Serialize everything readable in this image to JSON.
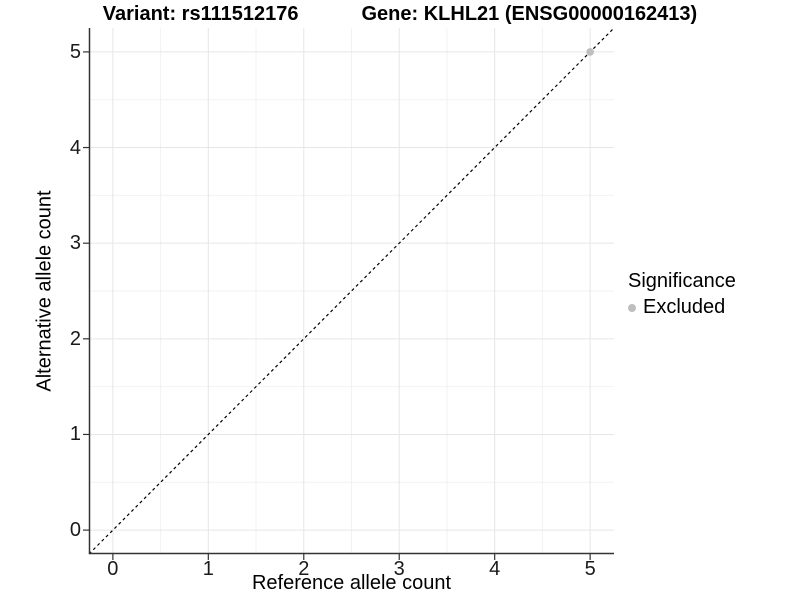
{
  "header": {
    "title_left": "Variant: rs111512176",
    "title_right": "Gene: KLHL21 (ENSG00000162413)"
  },
  "chart_data": {
    "type": "scatter",
    "title": "Variant: rs111512176   Gene: KLHL21 (ENSG00000162413)",
    "xlabel": "Reference allele count",
    "ylabel": "Alternative allele count",
    "xlim": [
      -0.25,
      5.25
    ],
    "ylim": [
      -0.25,
      5.25
    ],
    "x_ticks": [
      0,
      1,
      2,
      3,
      4,
      5
    ],
    "y_ticks": [
      0,
      1,
      2,
      3,
      4,
      5
    ],
    "grid": true,
    "series": [
      {
        "name": "Excluded",
        "color": "#bebebe",
        "points": [
          {
            "x": 5,
            "y": 5
          }
        ]
      }
    ],
    "reference_line": {
      "type": "identity",
      "slope": 1,
      "intercept": 0,
      "style": "dashed",
      "color": "#000000"
    },
    "legend": {
      "title": "Significance",
      "position": "right",
      "items": [
        {
          "label": "Excluded",
          "color": "#bebebe"
        }
      ]
    },
    "colors": {
      "major_grid": "#e6e6e6",
      "minor_grid": "#f2f2f2",
      "axis_line": "#333333",
      "tick_mark": "#333333",
      "point": "#bebebe"
    }
  }
}
